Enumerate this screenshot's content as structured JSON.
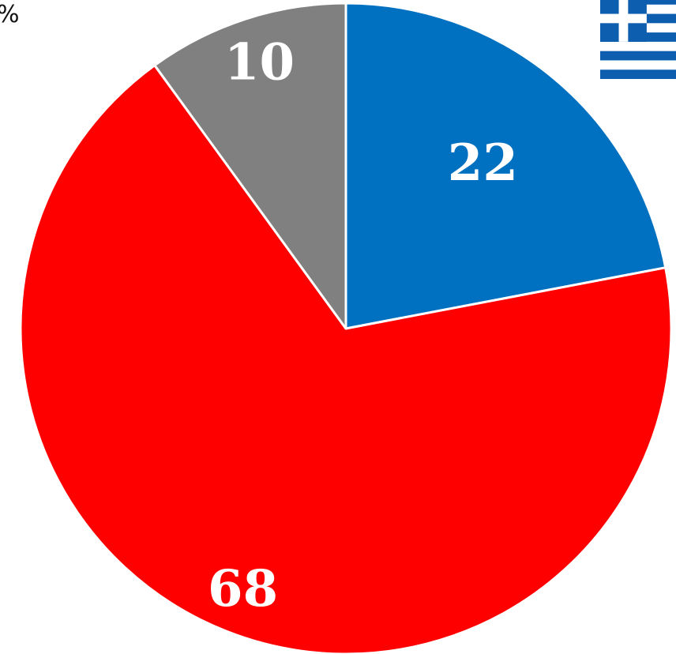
{
  "chart_data": {
    "type": "pie",
    "unit_label": "%",
    "slices": [
      {
        "label": "22",
        "value": 22,
        "color": "#0070C0"
      },
      {
        "label": "68",
        "value": 68,
        "color": "#FF0000"
      },
      {
        "label": "10",
        "value": 10,
        "color": "#808080"
      }
    ],
    "start": "12 o'clock",
    "direction": "clockwise",
    "legend": "none",
    "slice_border_color": "#ffffff"
  },
  "flag": {
    "icon": "greece-flag-icon",
    "colors": {
      "blue": "#0D5EAF",
      "white": "#ffffff"
    }
  }
}
